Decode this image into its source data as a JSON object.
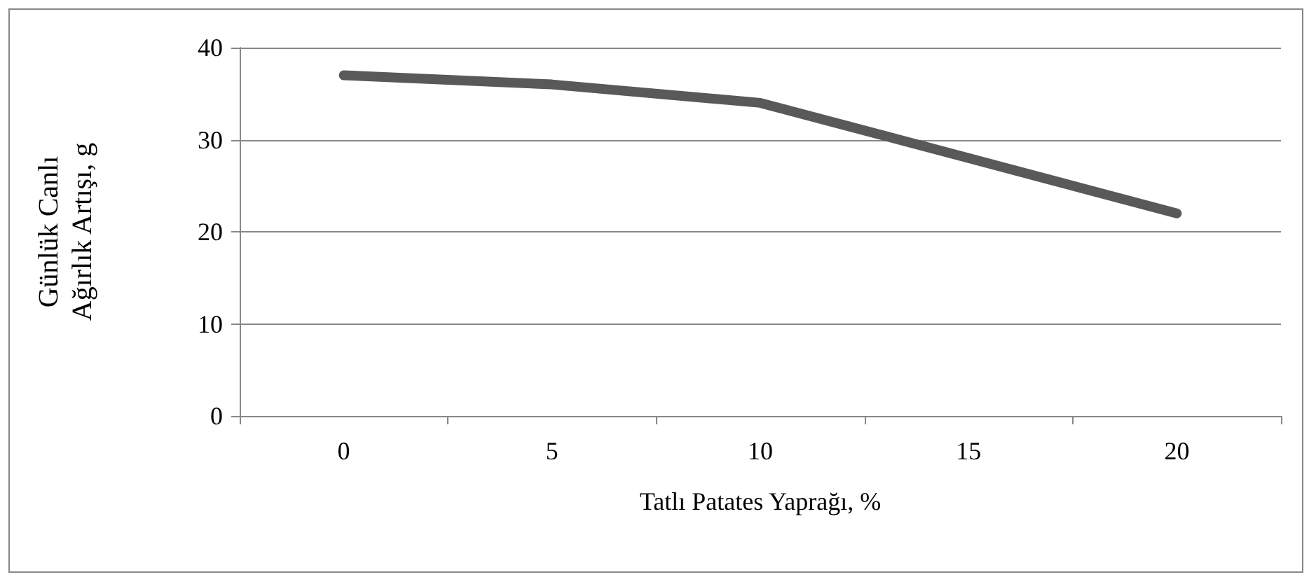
{
  "chart_data": {
    "type": "line",
    "xlabel": "Tatlı Patates Yaprağı, %",
    "ylabel": "Günlük Canlı Ağırlık Artışı, g",
    "categories": [
      "0",
      "5",
      "10",
      "15",
      "20"
    ],
    "series": [
      {
        "color": "#595959",
        "values": [
          37,
          36,
          34,
          28,
          22
        ]
      }
    ],
    "ylim": [
      0,
      40
    ],
    "yticks": [
      0,
      10,
      20,
      30,
      40
    ],
    "grid": "y",
    "marker": "none",
    "line_style": "solid"
  }
}
